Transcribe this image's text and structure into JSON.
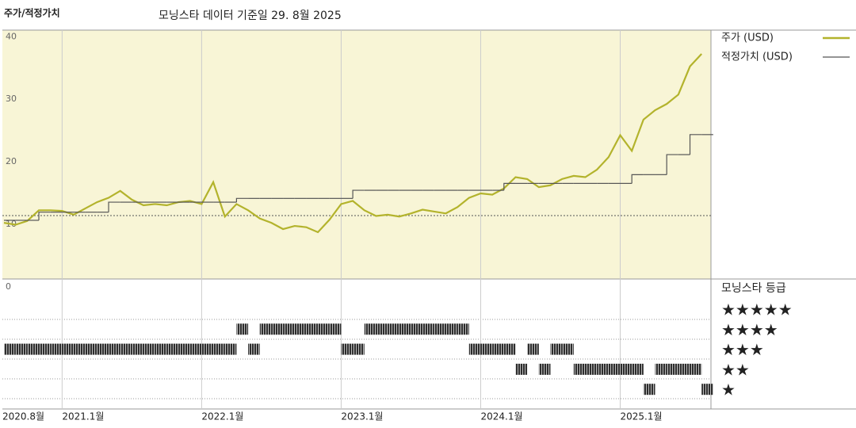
{
  "chart_data": [
    {
      "type": "line",
      "title": "주가/적정가치",
      "subtitle": "모닝스타 데이터 기준일 29. 8월 2025",
      "x": [
        "2020-08",
        "2020-09",
        "2020-10",
        "2020-11",
        "2020-12",
        "2021-01",
        "2021-02",
        "2021-03",
        "2021-04",
        "2021-05",
        "2021-06",
        "2021-07",
        "2021-08",
        "2021-09",
        "2021-10",
        "2021-11",
        "2021-12",
        "2022-01",
        "2022-02",
        "2022-03",
        "2022-04",
        "2022-05",
        "2022-06",
        "2022-07",
        "2022-08",
        "2022-09",
        "2022-10",
        "2022-11",
        "2022-12",
        "2023-01",
        "2023-02",
        "2023-03",
        "2023-04",
        "2023-05",
        "2023-06",
        "2023-07",
        "2023-08",
        "2023-09",
        "2023-10",
        "2023-11",
        "2023-12",
        "2024-01",
        "2024-02",
        "2024-03",
        "2024-04",
        "2024-05",
        "2024-06",
        "2024-07",
        "2024-08",
        "2024-09",
        "2024-10",
        "2024-11",
        "2024-12",
        "2025-01",
        "2025-02",
        "2025-03",
        "2025-04",
        "2025-05",
        "2025-06",
        "2025-07",
        "2025-08"
      ],
      "series": [
        {
          "name": "주가 (USD)",
          "color": "#b3b32c",
          "style": "line",
          "values": [
            10.5,
            10.2,
            10.8,
            12.5,
            12.5,
            12.4,
            11.8,
            12.8,
            13.8,
            14.5,
            15.6,
            14.2,
            13.3,
            13.5,
            13.3,
            13.8,
            14.0,
            13.5,
            17.0,
            11.5,
            13.5,
            12.5,
            11.2,
            10.5,
            9.5,
            10.0,
            9.8,
            9.0,
            11.0,
            13.5,
            14.0,
            12.5,
            11.6,
            11.8,
            11.5,
            12.0,
            12.6,
            12.3,
            12.0,
            13.0,
            14.5,
            15.2,
            15.0,
            16.0,
            17.8,
            17.5,
            16.2,
            16.5,
            17.5,
            18.0,
            17.8,
            19.0,
            21.0,
            24.5,
            22.0,
            27.0,
            28.5,
            29.5,
            31.0,
            35.5,
            37.5
          ]
        },
        {
          "name": "적정가치 (USD)",
          "color": "#555555",
          "style": "step",
          "values": [
            10.9,
            10.9,
            10.9,
            12.2,
            12.2,
            12.2,
            12.2,
            12.2,
            12.2,
            13.8,
            13.8,
            13.8,
            13.8,
            13.8,
            13.8,
            13.8,
            13.8,
            13.8,
            13.8,
            13.8,
            14.4,
            14.4,
            14.4,
            14.4,
            14.4,
            14.4,
            14.4,
            14.4,
            14.4,
            14.4,
            15.7,
            15.7,
            15.7,
            15.7,
            15.7,
            15.7,
            15.7,
            15.7,
            15.7,
            15.7,
            15.7,
            15.7,
            15.7,
            16.8,
            16.8,
            16.8,
            16.8,
            16.8,
            16.8,
            16.8,
            16.8,
            16.8,
            16.8,
            16.8,
            18.2,
            18.2,
            18.2,
            21.4,
            21.4,
            24.6,
            24.6
          ]
        }
      ],
      "ylim": [
        0,
        41.3
      ],
      "yticks": [
        0,
        10,
        20,
        30,
        40
      ],
      "xticks": [
        {
          "value": "2020-08",
          "label": "2020.8월"
        },
        {
          "value": "2021-01",
          "label": "2021.1월"
        },
        {
          "value": "2022-01",
          "label": "2022.1월"
        },
        {
          "value": "2023-01",
          "label": "2023.1월"
        },
        {
          "value": "2024-01",
          "label": "2024.1월"
        },
        {
          "value": "2025-01",
          "label": "2025.1월"
        }
      ],
      "grid": "x",
      "background": "#f8f5d6"
    },
    {
      "type": "rating",
      "title": "모닝스타 등급",
      "color": "#333333",
      "levels": [
        5,
        4,
        3,
        2,
        1
      ],
      "level_labels": [
        "★★★★★",
        "★★★★",
        "★★★",
        "★★",
        "★"
      ],
      "values": [
        3,
        3,
        3,
        3,
        3,
        3,
        3,
        3,
        3,
        3,
        3,
        3,
        3,
        3,
        3,
        3,
        3,
        3,
        3,
        3,
        4,
        3,
        4,
        4,
        4,
        4,
        4,
        4,
        4,
        3,
        3,
        4,
        4,
        4,
        4,
        4,
        4,
        4,
        4,
        4,
        3,
        3,
        3,
        3,
        2,
        3,
        2,
        3,
        3,
        2,
        2,
        2,
        2,
        2,
        2,
        1,
        2,
        2,
        2,
        2,
        1
      ]
    }
  ]
}
